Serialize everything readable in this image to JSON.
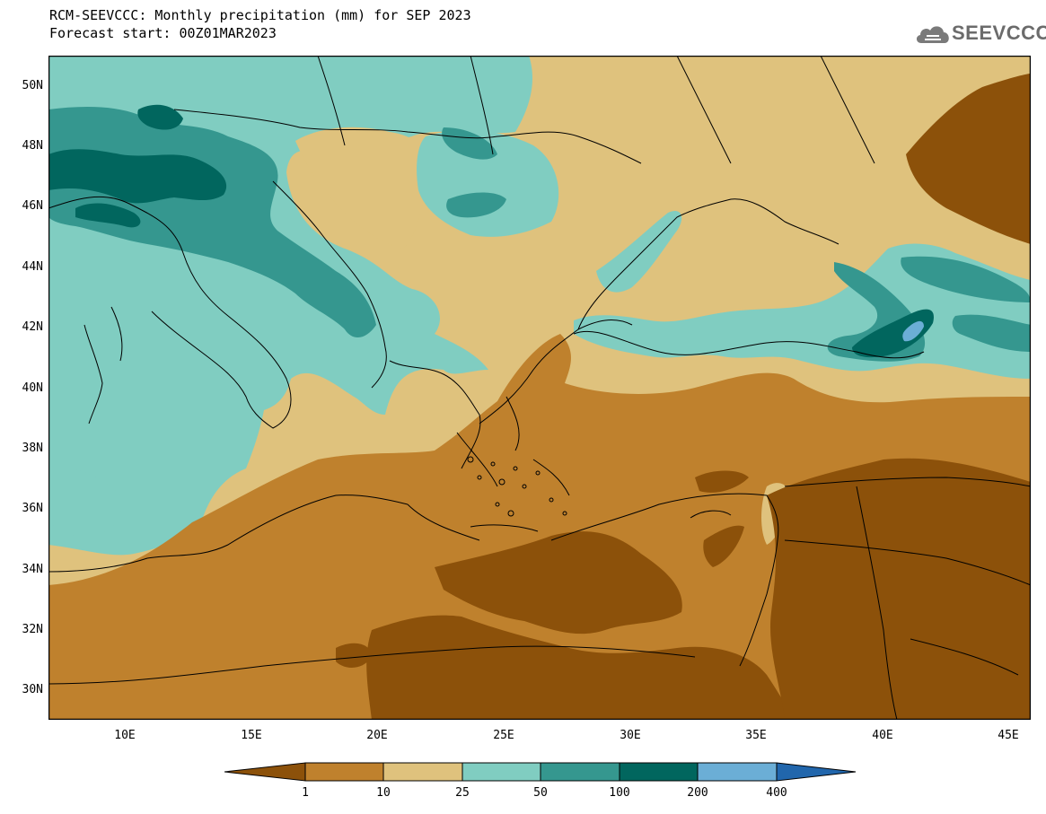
{
  "title": {
    "line1": "RCM-SEEVCCC: Monthly precipitation (mm) for SEP 2023",
    "line2": "Forecast start: 00Z01MAR2023"
  },
  "logo": {
    "text": "SEEVCCC",
    "icon": "cloud-icon"
  },
  "map": {
    "lat_labels": [
      "50N",
      "48N",
      "46N",
      "44N",
      "42N",
      "40N",
      "38N",
      "36N",
      "34N",
      "32N",
      "30N"
    ],
    "lon_labels": [
      "10E",
      "15E",
      "20E",
      "25E",
      "30E",
      "35E",
      "40E",
      "45E"
    ],
    "colors": {
      "below_1": "#8c510a",
      "1_10": "#bf812d",
      "10_25": "#dfc27d",
      "25_50": "#80cdc1",
      "50_100": "#35978f",
      "100_200": "#01665e",
      "200_400": "#6baed6",
      "above_400": "#2166ac",
      "border": "#000000"
    }
  },
  "colorbar": {
    "labels": [
      "1",
      "10",
      "25",
      "50",
      "100",
      "200",
      "400"
    ]
  }
}
